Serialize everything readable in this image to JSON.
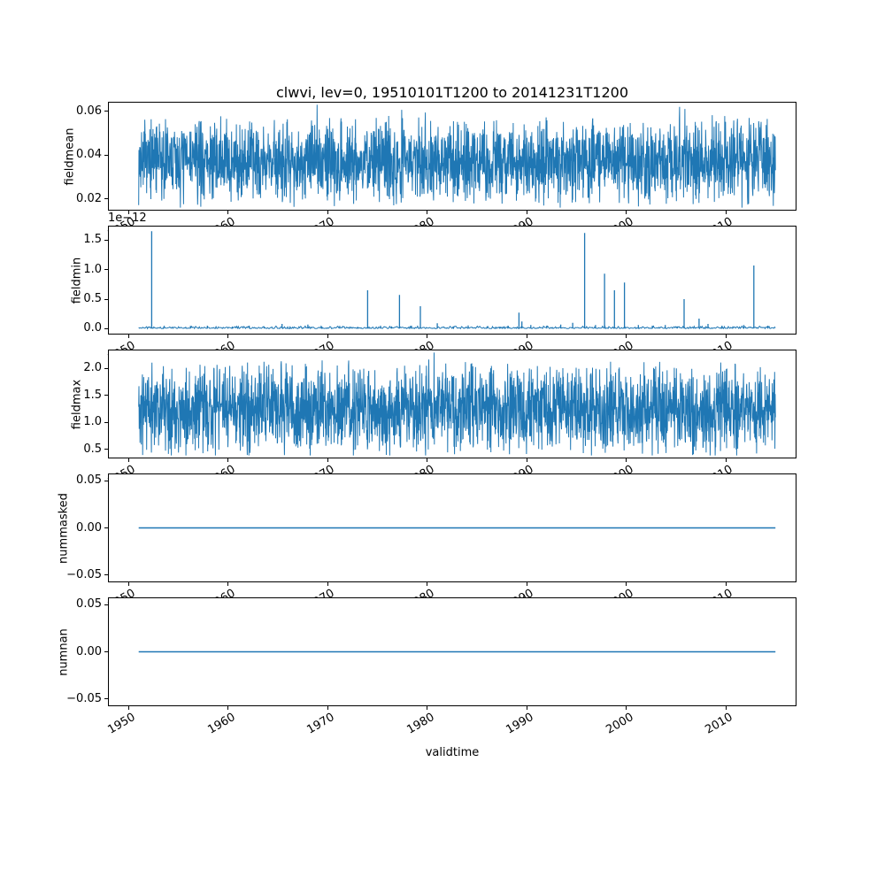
{
  "chart_data": {
    "type": "line",
    "title": "clwvi, lev=0, 19510101T1200 to 20141231T1200",
    "xlabel": "validtime",
    "line_color": "#1f77b4",
    "spine_color": "#000000",
    "background_color": "#ffffff",
    "grid": false,
    "legend": "none",
    "x_axis": {
      "lim": [
        1948,
        2017
      ],
      "tick_vals": [
        1950,
        1960,
        1970,
        1980,
        1990,
        2000,
        2010
      ],
      "tick_labels": [
        "1950",
        "1960",
        "1970",
        "1980",
        "1990",
        "2000",
        "2010"
      ],
      "tick_rotation_deg": 30,
      "data_start": 1951.0,
      "data_end": 2014.97
    },
    "subplots": [
      {
        "ylabel": "fieldmean",
        "ylim": [
          0.015,
          0.064
        ],
        "ytick_vals": [
          0.02,
          0.04,
          0.06
        ],
        "ytick_labels": [
          "0.02",
          "0.04",
          "0.06"
        ],
        "series": {
          "kind": "noise",
          "baseline": 0.0375,
          "amplitude": 0.022,
          "observed_range": [
            0.019,
            0.061
          ],
          "n": 2400,
          "seed": 7
        }
      },
      {
        "ylabel": "fieldmin",
        "scale_offset_text": "1e−12",
        "ylim": [
          -0.085,
          1.73
        ],
        "ytick_vals": [
          0,
          0.5,
          1.0,
          1.5
        ],
        "ytick_labels": [
          "0.0",
          "0.5",
          "1.0",
          "1.5"
        ],
        "series": {
          "kind": "spikes",
          "units": "1e-12",
          "baseline": 0,
          "fuzz_amplitude": 0.045,
          "spikes": [
            [
              1952.3,
              1.65
            ],
            [
              1953.5,
              0.03
            ],
            [
              1956.2,
              0.045
            ],
            [
              1957.9,
              0.05
            ],
            [
              1960.4,
              0.035
            ],
            [
              1962.1,
              0.05
            ],
            [
              1963.6,
              0.04
            ],
            [
              1965.4,
              0.08
            ],
            [
              1966.2,
              0.04
            ],
            [
              1968.0,
              0.07
            ],
            [
              1969.4,
              0.035
            ],
            [
              1971.2,
              0.045
            ],
            [
              1973.0,
              0.03
            ],
            [
              1974.0,
              0.65
            ],
            [
              1975.3,
              0.05
            ],
            [
              1976.4,
              0.04
            ],
            [
              1977.2,
              0.57
            ],
            [
              1978.4,
              0.05
            ],
            [
              1979.3,
              0.38
            ],
            [
              1981.0,
              0.09
            ],
            [
              1982.6,
              0.04
            ],
            [
              1984.1,
              0.055
            ],
            [
              1986.0,
              0.04
            ],
            [
              1987.3,
              0.035
            ],
            [
              1988.1,
              0.05
            ],
            [
              1989.2,
              0.27
            ],
            [
              1989.5,
              0.12
            ],
            [
              1990.4,
              0.06
            ],
            [
              1992.0,
              0.05
            ],
            [
              1993.4,
              0.07
            ],
            [
              1994.6,
              0.1
            ],
            [
              1995.8,
              1.62
            ],
            [
              1996.9,
              0.06
            ],
            [
              1997.8,
              0.93
            ],
            [
              1998.8,
              0.65
            ],
            [
              1999.8,
              0.78
            ],
            [
              2001.2,
              0.06
            ],
            [
              2002.6,
              0.05
            ],
            [
              2003.9,
              0.06
            ],
            [
              2005.1,
              0.04
            ],
            [
              2005.8,
              0.5
            ],
            [
              2007.3,
              0.17
            ],
            [
              2008.2,
              0.08
            ],
            [
              2009.6,
              0.05
            ],
            [
              2010.7,
              0.04
            ],
            [
              2011.8,
              0.06
            ],
            [
              2012.8,
              1.07
            ],
            [
              2014.2,
              0.05
            ]
          ]
        }
      },
      {
        "ylabel": "fieldmax",
        "ylim": [
          0.35,
          2.33
        ],
        "ytick_vals": [
          0.5,
          1.0,
          1.5,
          2.0
        ],
        "ytick_labels": [
          "0.5",
          "1.0",
          "1.5",
          "2.0"
        ],
        "series": {
          "kind": "noise",
          "baseline": 1.25,
          "amplitude": 0.95,
          "observed_range": [
            0.45,
            2.3
          ],
          "n": 2400,
          "seed": 11
        }
      },
      {
        "ylabel": "nummasked",
        "ylim": [
          -0.057,
          0.057
        ],
        "ytick_vals": [
          -0.05,
          0,
          0.05
        ],
        "ytick_labels": [
          "−0.05",
          "0.00",
          "0.05"
        ],
        "series": {
          "kind": "flat",
          "value": 0
        }
      },
      {
        "ylabel": "numnan",
        "ylim": [
          -0.057,
          0.057
        ],
        "ytick_vals": [
          -0.05,
          0,
          0.05
        ],
        "ytick_labels": [
          "−0.05",
          "0.00",
          "0.05"
        ],
        "series": {
          "kind": "flat",
          "value": 0
        }
      }
    ]
  }
}
